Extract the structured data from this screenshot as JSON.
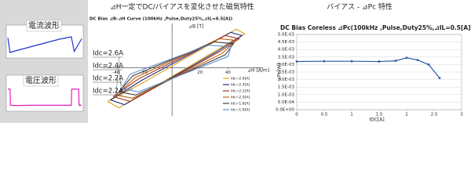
{
  "chart_data": [
    {
      "type": "line",
      "title": "電流波形",
      "color": "#2233cc",
      "x": [
        0,
        0.3,
        1,
        2,
        3,
        4,
        5,
        6,
        7,
        8.6,
        9,
        10
      ],
      "values": [
        0.35,
        -0.4,
        -0.32,
        -0.22,
        -0.12,
        -0.02,
        0.08,
        0.18,
        0.28,
        0.4,
        -0.35,
        0.3
      ],
      "xlim": [
        0,
        10
      ],
      "ylim": [
        -0.6,
        0.6
      ]
    },
    {
      "type": "line",
      "title": "電圧波形",
      "color": "#e020c0",
      "x": [
        0,
        0.3,
        0.35,
        1,
        3,
        5,
        7,
        8.6,
        8.65,
        9.6,
        9.65,
        10
      ],
      "values": [
        0.8,
        0.8,
        -0.3,
        -0.32,
        -0.3,
        -0.3,
        -0.3,
        -0.3,
        0.8,
        0.8,
        -0.3,
        -0.3
      ],
      "xlim": [
        0,
        10
      ],
      "ylim": [
        -0.6,
        1.0
      ]
    },
    {
      "type": "loop",
      "heading": "⊿H一定でDC/バイアスを変化させた磁気特性",
      "title": "DC Bias ⊿B-⊿H Curve (100kHz ,Pulse,Duty25%,⊿IL=0.5[A])",
      "ylabel": "⊿B [T]",
      "xlabel": "⊿H [A/m]",
      "xlim": [
        -50,
        65
      ],
      "xticks": [
        -40,
        -20,
        20,
        40
      ],
      "ylim": [
        -0.6,
        0.55
      ],
      "series": [
        {
          "name": "Idc=2.6[A]",
          "color": "#e0a020",
          "x": [
            -46,
            -38,
            30,
            52,
            46,
            -20,
            -46
          ],
          "y": [
            -0.42,
            -0.5,
            0.2,
            0.42,
            0.48,
            -0.18,
            -0.42
          ]
        },
        {
          "name": "Idc=2.4[A]",
          "color": "#203070",
          "x": [
            -44,
            -34,
            32,
            50,
            42,
            -22,
            -44
          ],
          "y": [
            -0.4,
            -0.46,
            0.2,
            0.4,
            0.44,
            -0.16,
            -0.4
          ]
        },
        {
          "name": "Idc=2.2[A]",
          "color": "#a03020",
          "x": [
            -42,
            -30,
            34,
            48,
            38,
            -24,
            -42
          ],
          "y": [
            -0.36,
            -0.42,
            0.2,
            0.36,
            0.4,
            -0.14,
            -0.36
          ]
        },
        {
          "name": "Idc=2.0[A]",
          "color": "#c06010",
          "x": [
            -40,
            -28,
            36,
            46,
            34,
            -26,
            -40
          ],
          "y": [
            -0.34,
            -0.38,
            0.18,
            0.34,
            0.36,
            -0.12,
            -0.34
          ]
        },
        {
          "name": "Idc=1.8[A]",
          "color": "#404040",
          "x": [
            -38,
            -26,
            38,
            44,
            30,
            -28,
            -38
          ],
          "y": [
            -0.3,
            -0.34,
            0.16,
            0.3,
            0.32,
            -0.1,
            -0.3
          ]
        },
        {
          "name": "Idc=1.6[A]",
          "color": "#6090d0",
          "x": [
            -36,
            -24,
            40,
            42,
            26,
            -30,
            -36
          ],
          "y": [
            -0.26,
            -0.3,
            0.14,
            0.26,
            0.28,
            -0.08,
            -0.26
          ]
        }
      ],
      "annotations": [
        "Idc=2.6A",
        "Idc=2.4A",
        "Idc=2.2A",
        "Idc=2.2A"
      ]
    },
    {
      "type": "line",
      "heading": "バイアス - ⊿Pc 特性",
      "title": "DC Bias Coreless ⊿Pc(100kHz ,Pulse,Duty25%,⊿IL=0.5[A])",
      "xlabel": "IDC[A]",
      "ylabel": "⊿Pc[W]",
      "color": "#2b5aa8",
      "x": [
        0,
        0.5,
        1,
        1.5,
        1.8,
        2,
        2.2,
        2.4,
        2.6
      ],
      "values": [
        0.0032,
        0.00322,
        0.00322,
        0.0032,
        0.00325,
        0.00345,
        0.0033,
        0.003,
        0.0021
      ],
      "xlim": [
        0,
        3
      ],
      "xticks": [
        0,
        0.5,
        1,
        1.5,
        2,
        2.5,
        3
      ],
      "ylim": [
        0,
        0.005
      ],
      "yticks": [
        {
          "value": 0,
          "label": "0.0E+00"
        },
        {
          "value": 0.0005,
          "label": "5.0E-04"
        },
        {
          "value": 0.001,
          "label": "1.0E-03"
        },
        {
          "value": 0.0015,
          "label": "1.5E-03"
        },
        {
          "value": 0.002,
          "label": "2.0E-03"
        },
        {
          "value": 0.0025,
          "label": "2.5E-03"
        },
        {
          "value": 0.003,
          "label": "3.0E-03"
        },
        {
          "value": 0.0035,
          "label": "3.5E-03"
        },
        {
          "value": 0.004,
          "label": "4.0E-03"
        },
        {
          "value": 0.0045,
          "label": "4.5E-03"
        },
        {
          "value": 0.005,
          "label": "5.0E-03"
        }
      ],
      "grid": true
    }
  ]
}
